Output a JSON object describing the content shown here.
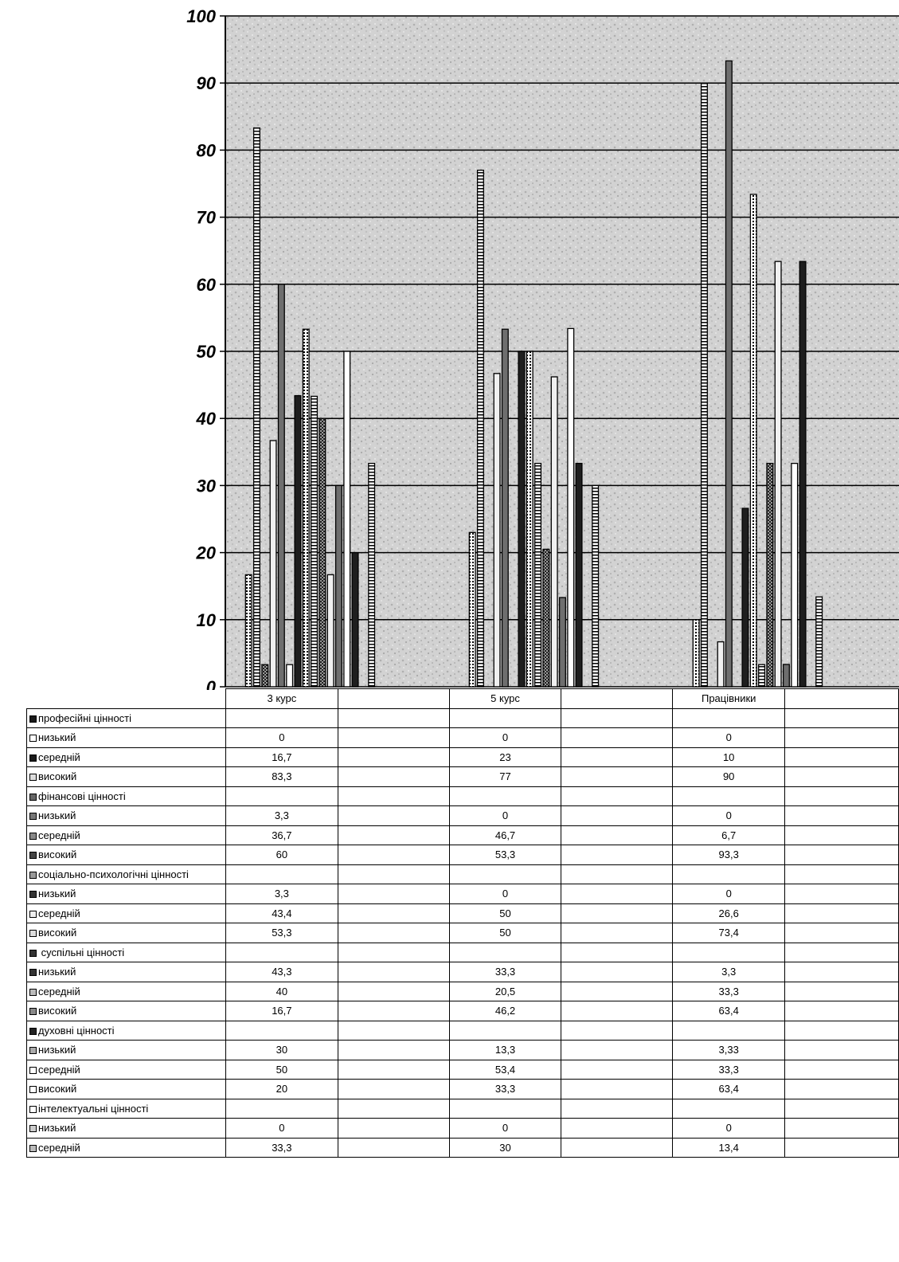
{
  "chart_data": {
    "type": "bar",
    "categories": [
      "3 курс",
      "5 курс",
      "Працівники"
    ],
    "ylim": [
      0,
      100
    ],
    "yticks": [
      0,
      10,
      20,
      30,
      40,
      50,
      60,
      70,
      80,
      90,
      100
    ],
    "grid": true,
    "rows": [
      {
        "label": "професійні цінності",
        "values": null,
        "swatch": "#1a1a1a"
      },
      {
        "label": "низький",
        "values": [
          0,
          0,
          0
        ],
        "swatch": "#ffffff"
      },
      {
        "label": "середній",
        "values": [
          16.7,
          23,
          10
        ],
        "swatch": "#1a1a1a"
      },
      {
        "label": "високий",
        "values": [
          83.3,
          77,
          90
        ],
        "swatch": "#dddddd"
      },
      {
        "label": "фінансові цінності",
        "values": null,
        "swatch": "#666666"
      },
      {
        "label": "низький",
        "values": [
          3.3,
          0,
          0
        ],
        "swatch": "#777777"
      },
      {
        "label": "середній",
        "values": [
          36.7,
          46.7,
          6.7
        ],
        "swatch": "#888888"
      },
      {
        "label": "високий",
        "values": [
          60,
          53.3,
          93.3
        ],
        "swatch": "#444444"
      },
      {
        "label": "соціально-психологічні цінності",
        "values": null,
        "swatch": "#999999"
      },
      {
        "label": "низький",
        "values": [
          3.3,
          0,
          0
        ],
        "swatch": "#333333"
      },
      {
        "label": "середній",
        "values": [
          43.4,
          50,
          26.6
        ],
        "swatch": "#eeeeee"
      },
      {
        "label": "високий",
        "values": [
          53.3,
          50,
          73.4
        ],
        "swatch": "#dddddd"
      },
      {
        "label": " суспільні цінності",
        "values": null,
        "swatch": "#333333"
      },
      {
        "label": "низький",
        "values": [
          43.3,
          33.3,
          3.3
        ],
        "swatch": "#333333"
      },
      {
        "label": "середній",
        "values": [
          40,
          20.5,
          33.3
        ],
        "swatch": "#bbbbbb"
      },
      {
        "label": "високий",
        "values": [
          16.7,
          46.2,
          63.4
        ],
        "swatch": "#888888"
      },
      {
        "label": "духовні цінності",
        "values": null,
        "swatch": "#222222"
      },
      {
        "label": "низький",
        "values": [
          30,
          13.3,
          3.33
        ],
        "swatch": "#aaaaaa"
      },
      {
        "label": "середній",
        "values": [
          50,
          53.4,
          33.3
        ],
        "swatch": "#ffffff"
      },
      {
        "label": "високий",
        "values": [
          20,
          33.3,
          63.4
        ],
        "swatch": "#ffffff"
      },
      {
        "label": "інтелектуальні цінності",
        "values": null,
        "swatch": "#ffffff"
      },
      {
        "label": "низький",
        "values": [
          0,
          0,
          0
        ],
        "swatch": "#cccccc"
      },
      {
        "label": "середній",
        "values": [
          33.3,
          30,
          13.4
        ],
        "swatch": "#bbbbbb"
      }
    ],
    "display_values": [
      null,
      [
        "0",
        "0",
        "0"
      ],
      [
        "16,7",
        "23",
        "10"
      ],
      [
        "83,3",
        "77",
        "90"
      ],
      null,
      [
        "3,3",
        "0",
        "0"
      ],
      [
        "36,7",
        "46,7",
        "6,7"
      ],
      [
        "60",
        "53,3",
        "93,3"
      ],
      null,
      [
        "3,3",
        "0",
        "0"
      ],
      [
        "43,4",
        "50",
        "26,6"
      ],
      [
        "53,3",
        "50",
        "73,4"
      ],
      null,
      [
        "43,3",
        "33,3",
        "3,3"
      ],
      [
        "40",
        "20,5",
        "33,3"
      ],
      [
        "16,7",
        "46,2",
        "63,4"
      ],
      null,
      [
        "30",
        "13,3",
        "3,33"
      ],
      [
        "50",
        "53,4",
        "33,3"
      ],
      [
        "20",
        "33,3",
        "63,4"
      ],
      null,
      [
        "0",
        "0",
        "0"
      ],
      [
        "33,3",
        "30",
        "13,4"
      ]
    ],
    "bar_patterns": [
      "dark",
      "dots",
      "stripes",
      "cross",
      "light",
      "mid",
      "white"
    ]
  }
}
